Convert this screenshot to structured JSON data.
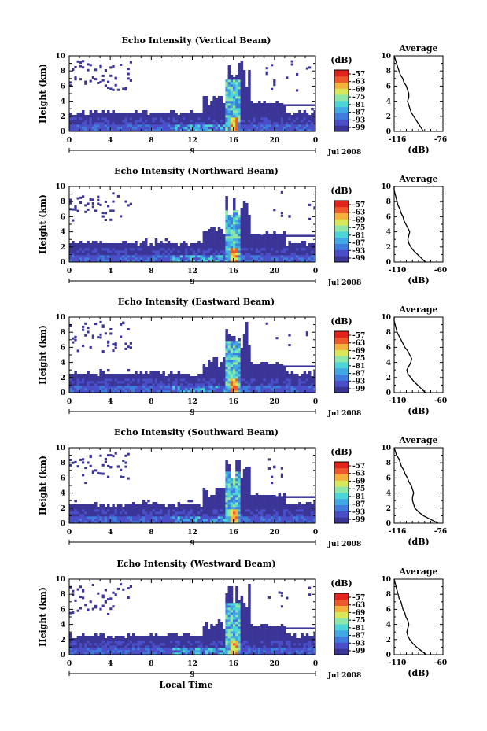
{
  "chart_data": [
    {
      "type": "heatmap",
      "title": "Echo Intensity (Vertical Beam)",
      "ylabel": "Height (km)",
      "yticks": [
        "0",
        "2",
        "4",
        "6",
        "8",
        "10"
      ],
      "xticks": [
        "0",
        "4",
        "8",
        "12",
        "16",
        "20",
        "0"
      ],
      "date_label": "Jul 2008",
      "day_marker": "9",
      "colorbar": {
        "unit": "(dB)",
        "ticks": [
          "-57",
          "-63",
          "-69",
          "-75",
          "-81",
          "-87",
          "-93",
          "-99"
        ]
      },
      "average_profile": {
        "title": "Average",
        "xlabel": "(dB)",
        "xticks": [
          "-116",
          "-76"
        ],
        "xlim": [
          -116,
          -76
        ],
        "ylim": [
          0,
          10
        ],
        "yticks": [
          "0",
          "2",
          "4",
          "6",
          "8",
          "10"
        ],
        "x": [
          -92,
          -94,
          -96,
          -98,
          -100,
          -102,
          -103,
          -104,
          -105,
          -104,
          -104,
          -105,
          -106,
          -108,
          -109,
          -111,
          -112,
          -113,
          -114,
          -115,
          -116
        ],
        "y": [
          0,
          0.5,
          1,
          1.5,
          2,
          2.5,
          3,
          3.5,
          4,
          4.5,
          5,
          5.5,
          6,
          6.5,
          7,
          7.5,
          8,
          8.5,
          9,
          9.5,
          10
        ]
      }
    },
    {
      "type": "heatmap",
      "title": "Echo Intensity (Northward Beam)",
      "ylabel": "Height (km)",
      "yticks": [
        "0",
        "2",
        "4",
        "6",
        "8",
        "10"
      ],
      "xticks": [
        "0",
        "4",
        "8",
        "12",
        "16",
        "20",
        "0"
      ],
      "date_label": "Jul 2008",
      "day_marker": "9",
      "colorbar": {
        "unit": "(dB)",
        "ticks": [
          "-57",
          "-63",
          "-69",
          "-75",
          "-81",
          "-87",
          "-93",
          "-99"
        ]
      },
      "average_profile": {
        "title": "Average",
        "xlabel": "(dB)",
        "xticks": [
          "-110",
          "-60"
        ],
        "xlim": [
          -110,
          -60
        ],
        "ylim": [
          0,
          10
        ],
        "yticks": [
          "0",
          "2",
          "4",
          "6",
          "8",
          "10"
        ],
        "x": [
          -78,
          -82,
          -86,
          -90,
          -93,
          -95,
          -96,
          -95,
          -94,
          -96,
          -98,
          -100,
          -101,
          -103,
          -104,
          -106,
          -107,
          -108,
          -109,
          -110,
          -110
        ],
        "y": [
          0,
          0.5,
          1,
          1.5,
          2,
          2.5,
          3,
          3.5,
          4,
          4.5,
          5,
          5.5,
          6,
          6.5,
          7,
          7.5,
          8,
          8.5,
          9,
          9.5,
          10
        ]
      }
    },
    {
      "type": "heatmap",
      "title": "Echo Intensity (Eastward Beam)",
      "ylabel": "Height (km)",
      "yticks": [
        "0",
        "2",
        "4",
        "6",
        "8",
        "10"
      ],
      "xticks": [
        "0",
        "4",
        "8",
        "12",
        "16",
        "20",
        "0"
      ],
      "date_label": "Jul 2008",
      "day_marker": "9",
      "colorbar": {
        "unit": "(dB)",
        "ticks": [
          "-57",
          "-63",
          "-69",
          "-75",
          "-81",
          "-87",
          "-93",
          "-99"
        ]
      },
      "average_profile": {
        "title": "Average",
        "xlabel": "(dB)",
        "xticks": [
          "-110",
          "-60"
        ],
        "xlim": [
          -110,
          -60
        ],
        "ylim": [
          0,
          10
        ],
        "yticks": [
          "0",
          "2",
          "4",
          "6",
          "8",
          "10"
        ],
        "x": [
          -78,
          -82,
          -86,
          -90,
          -93,
          -96,
          -97,
          -95,
          -93,
          -92,
          -94,
          -96,
          -99,
          -101,
          -103,
          -105,
          -107,
          -108,
          -109,
          -110,
          -110
        ],
        "y": [
          0,
          0.5,
          1,
          1.5,
          2,
          2.5,
          3,
          3.5,
          4,
          4.5,
          5,
          5.5,
          6,
          6.5,
          7,
          7.5,
          8,
          8.5,
          9,
          9.5,
          10
        ]
      }
    },
    {
      "type": "heatmap",
      "title": "Echo Intensity (Southward Beam)",
      "ylabel": "Height (km)",
      "yticks": [
        "0",
        "2",
        "4",
        "6",
        "8",
        "10"
      ],
      "xticks": [
        "0",
        "4",
        "8",
        "12",
        "16",
        "20",
        "0"
      ],
      "date_label": "Jul 2008",
      "day_marker": "9",
      "colorbar": {
        "unit": "(dB)",
        "ticks": [
          "-57",
          "-63",
          "-69",
          "-75",
          "-81",
          "-87",
          "-93",
          "-99"
        ]
      },
      "average_profile": {
        "title": "Average",
        "xlabel": "(dB)",
        "xticks": [
          "-116",
          "-76"
        ],
        "xlim": [
          -116,
          -76
        ],
        "ylim": [
          0,
          10
        ],
        "yticks": [
          "0",
          "2",
          "4",
          "6",
          "8",
          "10"
        ],
        "x": [
          -80,
          -86,
          -92,
          -96,
          -99,
          -100,
          -101,
          -101,
          -100,
          -101,
          -102,
          -104,
          -105,
          -107,
          -108,
          -110,
          -111,
          -112,
          -114,
          -115,
          -116
        ],
        "y": [
          0,
          0.5,
          1,
          1.5,
          2,
          2.5,
          3,
          3.5,
          4,
          4.5,
          5,
          5.5,
          6,
          6.5,
          7,
          7.5,
          8,
          8.5,
          9,
          9.5,
          10
        ]
      }
    },
    {
      "type": "heatmap",
      "title": "Echo Intensity (Westward Beam)",
      "ylabel": "Height (km)",
      "yticks": [
        "0",
        "2",
        "4",
        "6",
        "8",
        "10"
      ],
      "xticks": [
        "0",
        "4",
        "8",
        "12",
        "16",
        "20",
        "0"
      ],
      "date_label": "Jul 2008",
      "day_marker": "9",
      "xlabel": "Local Time",
      "colorbar": {
        "unit": "(dB)",
        "ticks": [
          "-57",
          "-63",
          "-69",
          "-75",
          "-81",
          "-87",
          "-93",
          "-99"
        ]
      },
      "average_profile": {
        "title": "Average",
        "xlabel": "(dB)",
        "xticks": [
          "-110",
          "-60"
        ],
        "xlim": [
          -110,
          -60
        ],
        "ylim": [
          0,
          10
        ],
        "yticks": [
          "0",
          "2",
          "4",
          "6",
          "8",
          "10"
        ],
        "x": [
          -77,
          -82,
          -87,
          -91,
          -94,
          -96,
          -97,
          -96,
          -95,
          -96,
          -98,
          -99,
          -101,
          -102,
          -103,
          -105,
          -106,
          -107,
          -108,
          -109,
          -110
        ],
        "y": [
          0,
          0.5,
          1,
          1.5,
          2,
          2.5,
          3,
          3.5,
          4,
          4.5,
          5,
          5.5,
          6,
          6.5,
          7,
          7.5,
          8,
          8.5,
          9,
          9.5,
          10
        ]
      }
    }
  ],
  "colormap": [
    "#3a3597",
    "#4a4fc9",
    "#3f7ddc",
    "#42a8e3",
    "#4cd4d6",
    "#8ee6a8",
    "#d9e85a",
    "#f4b13c",
    "#ef5a2c",
    "#e2241d"
  ]
}
